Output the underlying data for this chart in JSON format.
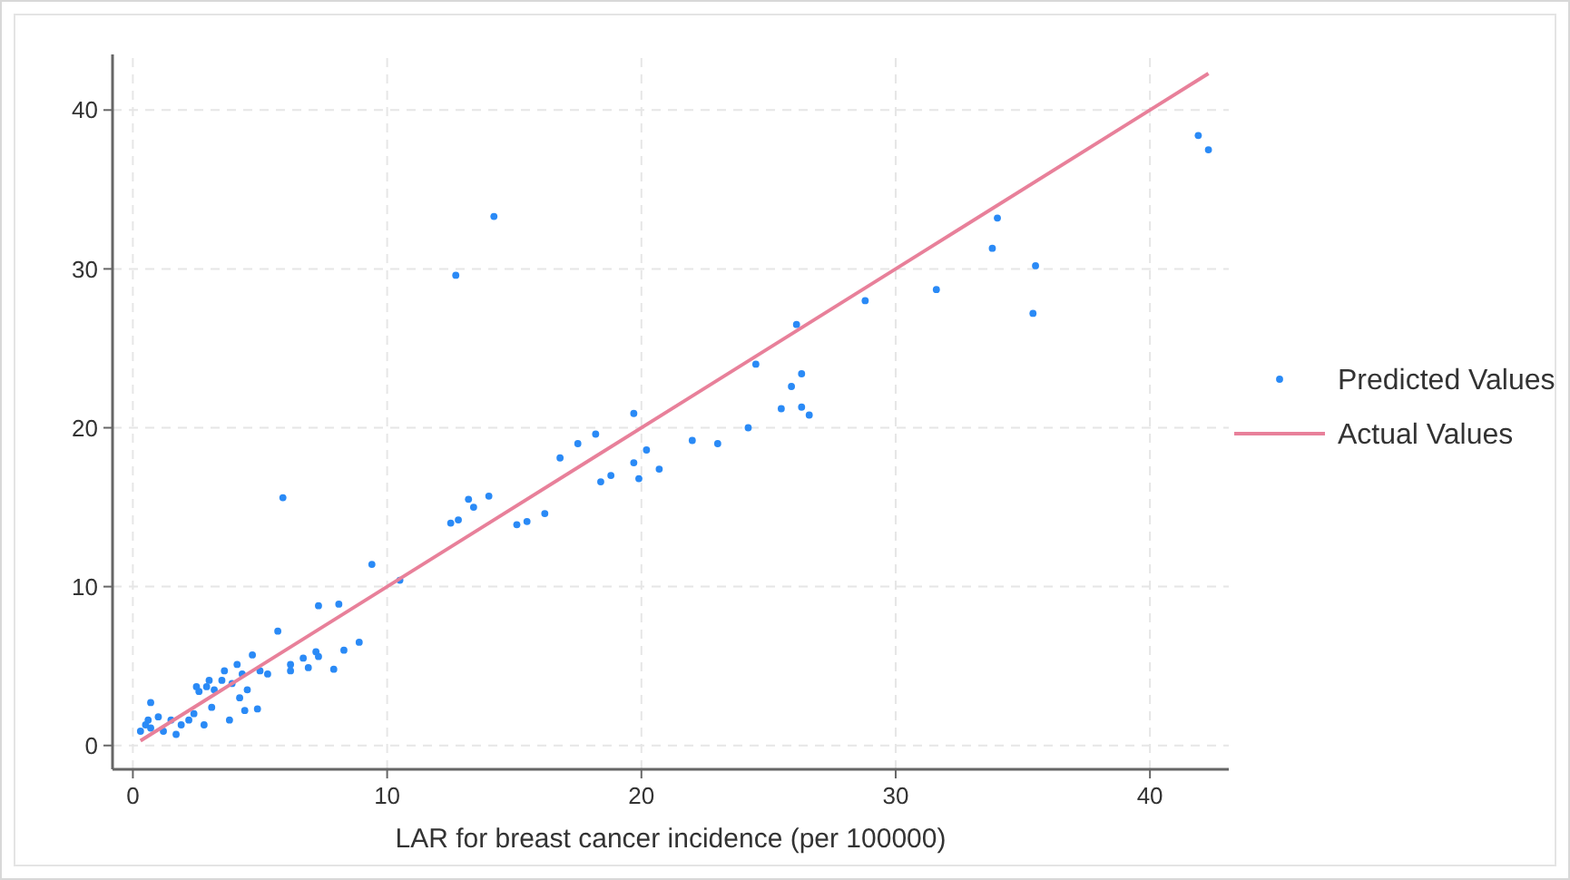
{
  "chart_data": {
    "type": "scatter",
    "xlabel": "LAR for breast cancer incidence (per 100000)",
    "xlim": [
      -0.8,
      43.1
    ],
    "ylim": [
      -1.5,
      43.5
    ],
    "xticks": [
      0,
      10,
      20,
      30,
      40
    ],
    "yticks": [
      0,
      10,
      20,
      30,
      40
    ],
    "grid": true,
    "legend": "right",
    "marker": "circle",
    "series": [
      {
        "name": "Predicted Values",
        "color": "#2a8af6",
        "x": [
          14.2,
          12.7,
          5.9,
          26.1,
          24.5,
          26.3,
          25.9,
          25.5,
          26.3,
          26.6,
          24.2,
          19.7,
          18.2,
          17.5,
          16.8,
          22.0,
          23.0,
          20.2,
          19.7,
          20.7,
          19.9,
          18.8,
          18.4,
          13.2,
          14.0,
          13.4,
          12.8,
          12.5,
          16.2,
          15.5,
          15.1,
          9.4,
          34.0,
          33.8,
          35.5,
          31.6,
          28.8,
          35.4,
          41.9,
          42.3,
          10.5,
          7.3,
          8.1,
          5.7,
          8.9,
          8.3,
          7.2,
          6.7,
          6.2,
          6.9,
          7.9,
          4.7,
          5.3,
          4.1,
          3.6,
          2.9,
          2.6,
          3.2,
          3.9,
          4.5,
          4.2,
          4.9,
          4.4,
          3.8,
          3.1,
          0.7,
          1.0,
          1.5,
          0.5,
          0.3,
          1.2,
          1.9,
          2.2,
          2.8,
          1.7,
          2.4,
          2.5,
          3.0,
          3.5,
          4.3,
          6.2,
          7.3,
          5.0,
          0.7,
          0.6
        ],
        "values": [
          33.3,
          29.6,
          15.6,
          26.5,
          24.0,
          23.4,
          22.6,
          21.2,
          21.3,
          20.8,
          20.0,
          20.9,
          19.6,
          19.0,
          18.1,
          19.2,
          19.0,
          18.6,
          17.8,
          17.4,
          16.8,
          17.0,
          16.6,
          15.5,
          15.7,
          15.0,
          14.2,
          14.0,
          14.6,
          14.1,
          13.9,
          11.4,
          33.2,
          31.3,
          30.2,
          28.7,
          28.0,
          27.2,
          38.4,
          37.5,
          10.4,
          8.8,
          8.9,
          7.2,
          6.5,
          6.0,
          5.9,
          5.5,
          5.1,
          4.9,
          4.8,
          5.7,
          4.5,
          5.1,
          4.7,
          3.7,
          3.4,
          3.5,
          3.9,
          3.5,
          3.0,
          2.3,
          2.2,
          1.6,
          2.4,
          2.7,
          1.8,
          1.6,
          1.3,
          0.9,
          0.9,
          1.3,
          1.6,
          1.3,
          0.7,
          2.0,
          3.7,
          4.1,
          4.1,
          4.5,
          4.7,
          5.6,
          4.7,
          1.1,
          1.6
        ]
      },
      {
        "name": "Actual Values",
        "type": "line",
        "color": "#e8809a",
        "marker": "none",
        "x": [
          0.3,
          42.3
        ],
        "values": [
          0.3,
          42.3
        ]
      }
    ]
  }
}
